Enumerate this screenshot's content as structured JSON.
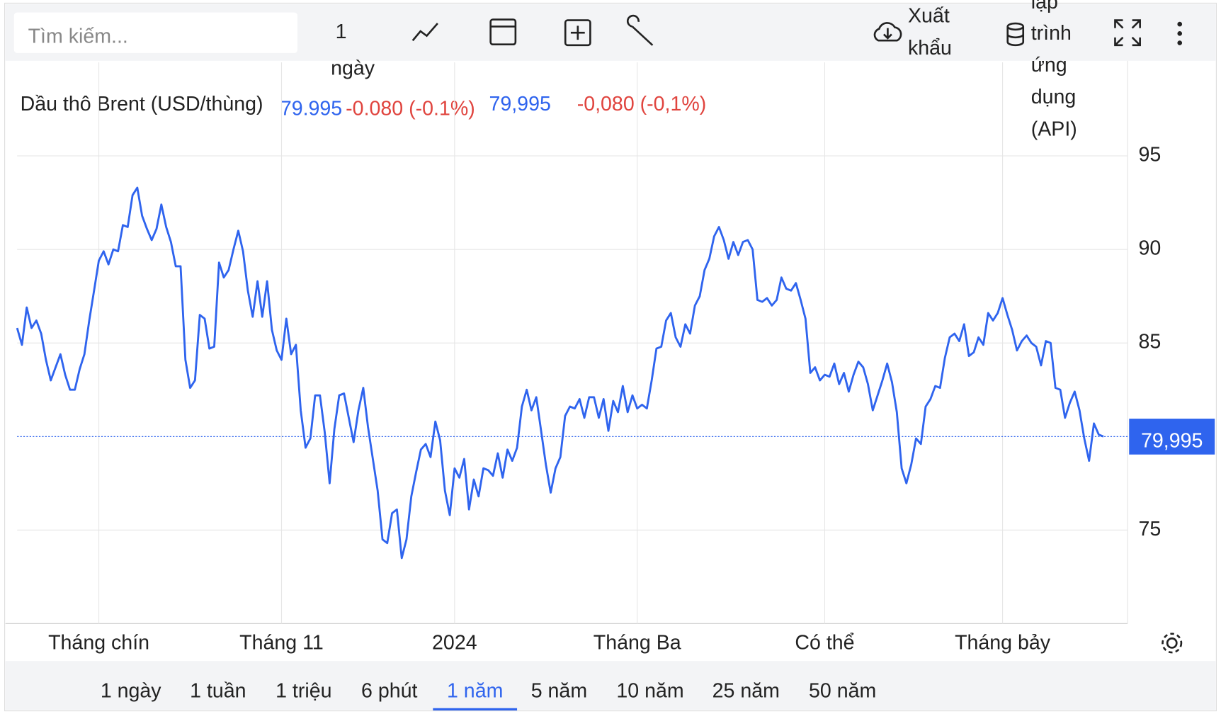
{
  "toolbar": {
    "search_placeholder": "Tìm kiếm...",
    "interval": [
      "1",
      "ngày"
    ],
    "export": [
      "Xuất",
      "khẩu"
    ],
    "api": [
      "lập",
      "trình",
      "ứng",
      "dụng",
      "(API)"
    ]
  },
  "legend": {
    "name": "Dầu thô Brent (USD/thùng)",
    "value": "79.995",
    "change": "-0.080 (-0.1%)",
    "value_alt": "79,995",
    "change_alt": "-0,080 (-0,1%)"
  },
  "chart_data": {
    "type": "line",
    "series": [
      {
        "name": "Dầu thô Brent (USD/thùng)",
        "color": "#2f64ee",
        "values": [
          85.8,
          84.9,
          86.9,
          85.8,
          86.2,
          85.5,
          84.1,
          83.0,
          83.7,
          84.4,
          83.3,
          82.5,
          82.5,
          83.6,
          84.4,
          86.2,
          87.8,
          89.4,
          89.9,
          89.2,
          90.0,
          89.9,
          91.3,
          91.2,
          92.9,
          93.3,
          91.8,
          91.1,
          90.5,
          91.1,
          92.4,
          91.2,
          90.4,
          89.1,
          89.1,
          84.1,
          82.6,
          83.0,
          86.5,
          86.3,
          84.7,
          84.8,
          89.3,
          88.5,
          88.9,
          90.0,
          91.0,
          89.9,
          87.8,
          86.4,
          88.3,
          86.4,
          88.3,
          85.7,
          84.6,
          84.1,
          86.3,
          84.4,
          84.9,
          81.4,
          79.4,
          79.9,
          82.2,
          82.2,
          80.2,
          77.5,
          80.4,
          82.2,
          82.3,
          81.0,
          79.7,
          81.4,
          82.6,
          80.5,
          78.8,
          77.1,
          74.5,
          74.3,
          75.9,
          76.1,
          73.5,
          74.5,
          76.8,
          78.1,
          79.3,
          79.6,
          78.9,
          80.8,
          79.8,
          77.1,
          75.8,
          78.3,
          77.8,
          78.8,
          76.1,
          77.7,
          76.8,
          78.3,
          78.2,
          77.9,
          79.1,
          77.8,
          79.3,
          78.7,
          79.4,
          81.6,
          82.5,
          81.4,
          82.1,
          80.3,
          78.5,
          77.0,
          78.3,
          78.9,
          81.1,
          81.6,
          81.5,
          82.0,
          81.0,
          82.1,
          82.1,
          81.0,
          82.0,
          80.3,
          81.9,
          81.3,
          82.7,
          81.3,
          82.2,
          81.5,
          81.7,
          81.5,
          83.0,
          84.7,
          84.8,
          86.2,
          86.6,
          85.3,
          84.8,
          86.0,
          85.5,
          87.0,
          87.5,
          88.9,
          89.5,
          90.7,
          91.2,
          90.5,
          89.5,
          90.4,
          89.7,
          90.4,
          90.5,
          90.0,
          87.3,
          87.2,
          87.4,
          87.0,
          87.3,
          88.5,
          87.9,
          87.8,
          88.2,
          87.3,
          86.3,
          83.4,
          83.7,
          83.0,
          83.3,
          83.2,
          83.9,
          82.8,
          83.4,
          82.4,
          83.3,
          84.0,
          83.7,
          82.8,
          81.4,
          82.2,
          83.0,
          83.9,
          82.9,
          81.3,
          78.3,
          77.5,
          78.5,
          79.9,
          79.6,
          81.6,
          82.0,
          82.7,
          82.6,
          84.2,
          85.3,
          85.5,
          85.1,
          86.0,
          84.3,
          84.5,
          85.3,
          84.9,
          86.6,
          86.2,
          86.6,
          87.4,
          86.5,
          85.7,
          84.6,
          85.1,
          85.4,
          85.0,
          84.8,
          83.8,
          85.1,
          85.0,
          82.6,
          82.5,
          81.0,
          81.8,
          82.4,
          81.4,
          79.9,
          78.7,
          80.7,
          80.1,
          79.995
        ],
        "last_label": "79,995"
      }
    ],
    "xlim": [
      0,
      231
    ],
    "xticks": [
      {
        "value": 17,
        "label": "Tháng chín"
      },
      {
        "value": 55,
        "label": "Tháng 11"
      },
      {
        "value": 91,
        "label": "2024"
      },
      {
        "value": 129,
        "label": "Tháng Ba"
      },
      {
        "value": 168,
        "label": "Có thể"
      },
      {
        "value": 205,
        "label": "Tháng bảy"
      }
    ],
    "ylim": [
      70,
      100
    ],
    "yticks": [
      75,
      85,
      90,
      95
    ],
    "grid": true
  },
  "range_buttons": [
    "1 ngày",
    "1 tuần",
    "1 triệu",
    "6 phút",
    "1 năm",
    "5 năm",
    "10 năm",
    "25 năm",
    "50 năm"
  ],
  "active_range": 4
}
